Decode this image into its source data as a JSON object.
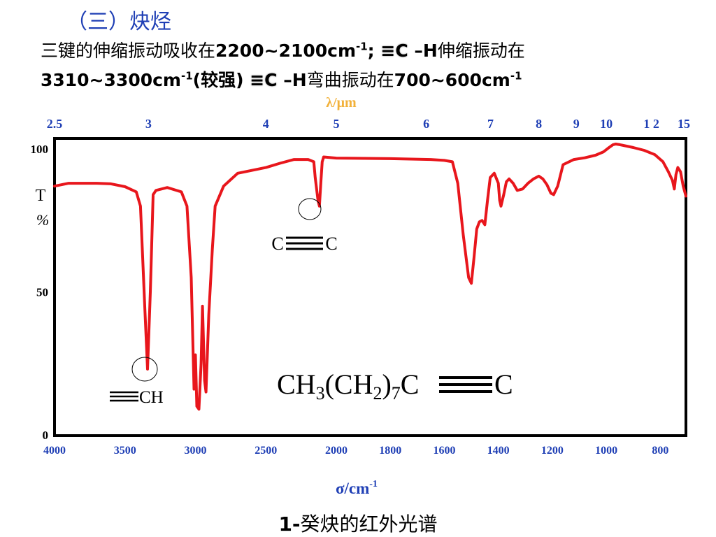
{
  "heading": "（三）炔烃",
  "line1": {
    "t1": "三键的伸缩振动吸收在",
    "b1": "2200~2100cm",
    "sup1": "-1",
    "t2": "; ",
    "triple1": "≡C",
    "b2": " –H",
    "t3": "伸缩振动在"
  },
  "line2": {
    "b1": "3310~3300cm",
    "sup1": "-1",
    "t1": "(较强) ",
    "triple1": "≡C",
    "b2": " –H",
    "t2": "弯曲振动在",
    "b3": "700~600cm",
    "sup2": "-1"
  },
  "caption": {
    "b": "1-",
    "t": "癸炔的红外光谱"
  },
  "chart_data": {
    "type": "line",
    "top_axis": {
      "label": "λ/μm",
      "ticks": [
        {
          "label": "2.5",
          "wn": 4000
        },
        {
          "label": "3",
          "wn": 3333
        },
        {
          "label": "4",
          "wn": 2500
        },
        {
          "label": "5",
          "wn": 2000
        },
        {
          "label": "6",
          "wn": 1667
        },
        {
          "label": "7",
          "wn": 1429
        },
        {
          "label": "8",
          "wn": 1250
        },
        {
          "label": "9",
          "wn": 1111
        },
        {
          "label": "10",
          "wn": 1000
        },
        {
          "label": "1 2",
          "wn": 833
        },
        {
          "label": "15",
          "wn": 667
        }
      ]
    },
    "bottom_axis": {
      "label_base": "σ/cm",
      "label_sup": "-1",
      "ticks": [
        "4000",
        "3500",
        "3000",
        "2500",
        "2000",
        "1800",
        "1600",
        "1400",
        "1200",
        "1000",
        "800"
      ]
    },
    "y_axis": {
      "label_top": "T",
      "label_bottom": "%",
      "ticks": [
        "100",
        "50",
        "0"
      ],
      "ylim": [
        0,
        100
      ]
    },
    "annotations": {
      "cc": "C",
      "cc2": "C",
      "ch": "CH",
      "formula": {
        "p1": "CH",
        "s1": "3",
        "p2": "(CH",
        "s2": "2",
        "p3": ")",
        "s3": "7",
        "p4": "C",
        "p5": "C"
      }
    },
    "curve_color": "#e8161c",
    "axis_text_color": "#1f3fb5",
    "lambda_label_color": "#f2b13a",
    "series": [
      {
        "points": [
          [
            4000,
            87.0
          ],
          [
            3900,
            88.0
          ],
          [
            3800,
            88.0
          ],
          [
            3700,
            88.0
          ],
          [
            3600,
            87.8
          ],
          [
            3500,
            86.8
          ],
          [
            3420,
            85.0
          ],
          [
            3390,
            80.0
          ],
          [
            3360,
            45.0
          ],
          [
            3340,
            23.0
          ],
          [
            3320,
            50.0
          ],
          [
            3300,
            84.0
          ],
          [
            3280,
            85.5
          ],
          [
            3200,
            86.5
          ],
          [
            3100,
            85.0
          ],
          [
            3060,
            80.0
          ],
          [
            3030,
            55.0
          ],
          [
            3010,
            16.0
          ],
          [
            3000,
            28.0
          ],
          [
            2990,
            10.0
          ],
          [
            2975,
            9.0
          ],
          [
            2960,
            25.0
          ],
          [
            2950,
            45.0
          ],
          [
            2935,
            19.0
          ],
          [
            2925,
            15.0
          ],
          [
            2905,
            42.0
          ],
          [
            2880,
            65.0
          ],
          [
            2860,
            80.0
          ],
          [
            2800,
            87.0
          ],
          [
            2700,
            91.5
          ],
          [
            2600,
            92.5
          ],
          [
            2500,
            93.5
          ],
          [
            2400,
            95.0
          ],
          [
            2300,
            96.3
          ],
          [
            2200,
            96.3
          ],
          [
            2160,
            95.5
          ],
          [
            2150,
            90.0
          ],
          [
            2130,
            82.0
          ],
          [
            2120,
            80.0
          ],
          [
            2110,
            88.0
          ],
          [
            2100,
            95.5
          ],
          [
            2090,
            97.2
          ],
          [
            2000,
            96.8
          ],
          [
            1800,
            96.6
          ],
          [
            1650,
            96.3
          ],
          [
            1600,
            96.0
          ],
          [
            1570,
            95.5
          ],
          [
            1550,
            88.0
          ],
          [
            1530,
            70.0
          ],
          [
            1510,
            55.0
          ],
          [
            1500,
            53.0
          ],
          [
            1490,
            62.0
          ],
          [
            1480,
            72.0
          ],
          [
            1470,
            74.5
          ],
          [
            1460,
            75.0
          ],
          [
            1450,
            73.5
          ],
          [
            1440,
            82.0
          ],
          [
            1430,
            90.0
          ],
          [
            1415,
            91.5
          ],
          [
            1400,
            88.0
          ],
          [
            1395,
            82.0
          ],
          [
            1390,
            80.0
          ],
          [
            1380,
            84.0
          ],
          [
            1370,
            88.5
          ],
          [
            1360,
            89.5
          ],
          [
            1345,
            88.0
          ],
          [
            1330,
            85.5
          ],
          [
            1310,
            86.0
          ],
          [
            1290,
            88.0
          ],
          [
            1270,
            89.5
          ],
          [
            1250,
            90.5
          ],
          [
            1235,
            89.5
          ],
          [
            1220,
            87.5
          ],
          [
            1205,
            84.5
          ],
          [
            1195,
            84.0
          ],
          [
            1180,
            87.0
          ],
          [
            1160,
            94.5
          ],
          [
            1120,
            96.3
          ],
          [
            1080,
            96.9
          ],
          [
            1040,
            97.8
          ],
          [
            1010,
            99.0
          ],
          [
            990,
            100.5
          ],
          [
            975,
            101.5
          ],
          [
            965,
            101.7
          ],
          [
            950,
            101.5
          ],
          [
            900,
            100.5
          ],
          [
            860,
            99.5
          ],
          [
            820,
            98.0
          ],
          [
            790,
            95.5
          ],
          [
            770,
            92.0
          ],
          [
            755,
            89.0
          ],
          [
            748,
            86.0
          ],
          [
            742,
            91.0
          ],
          [
            735,
            93.5
          ],
          [
            725,
            92.0
          ],
          [
            715,
            87.0
          ],
          [
            705,
            83.5
          ]
        ]
      }
    ]
  }
}
